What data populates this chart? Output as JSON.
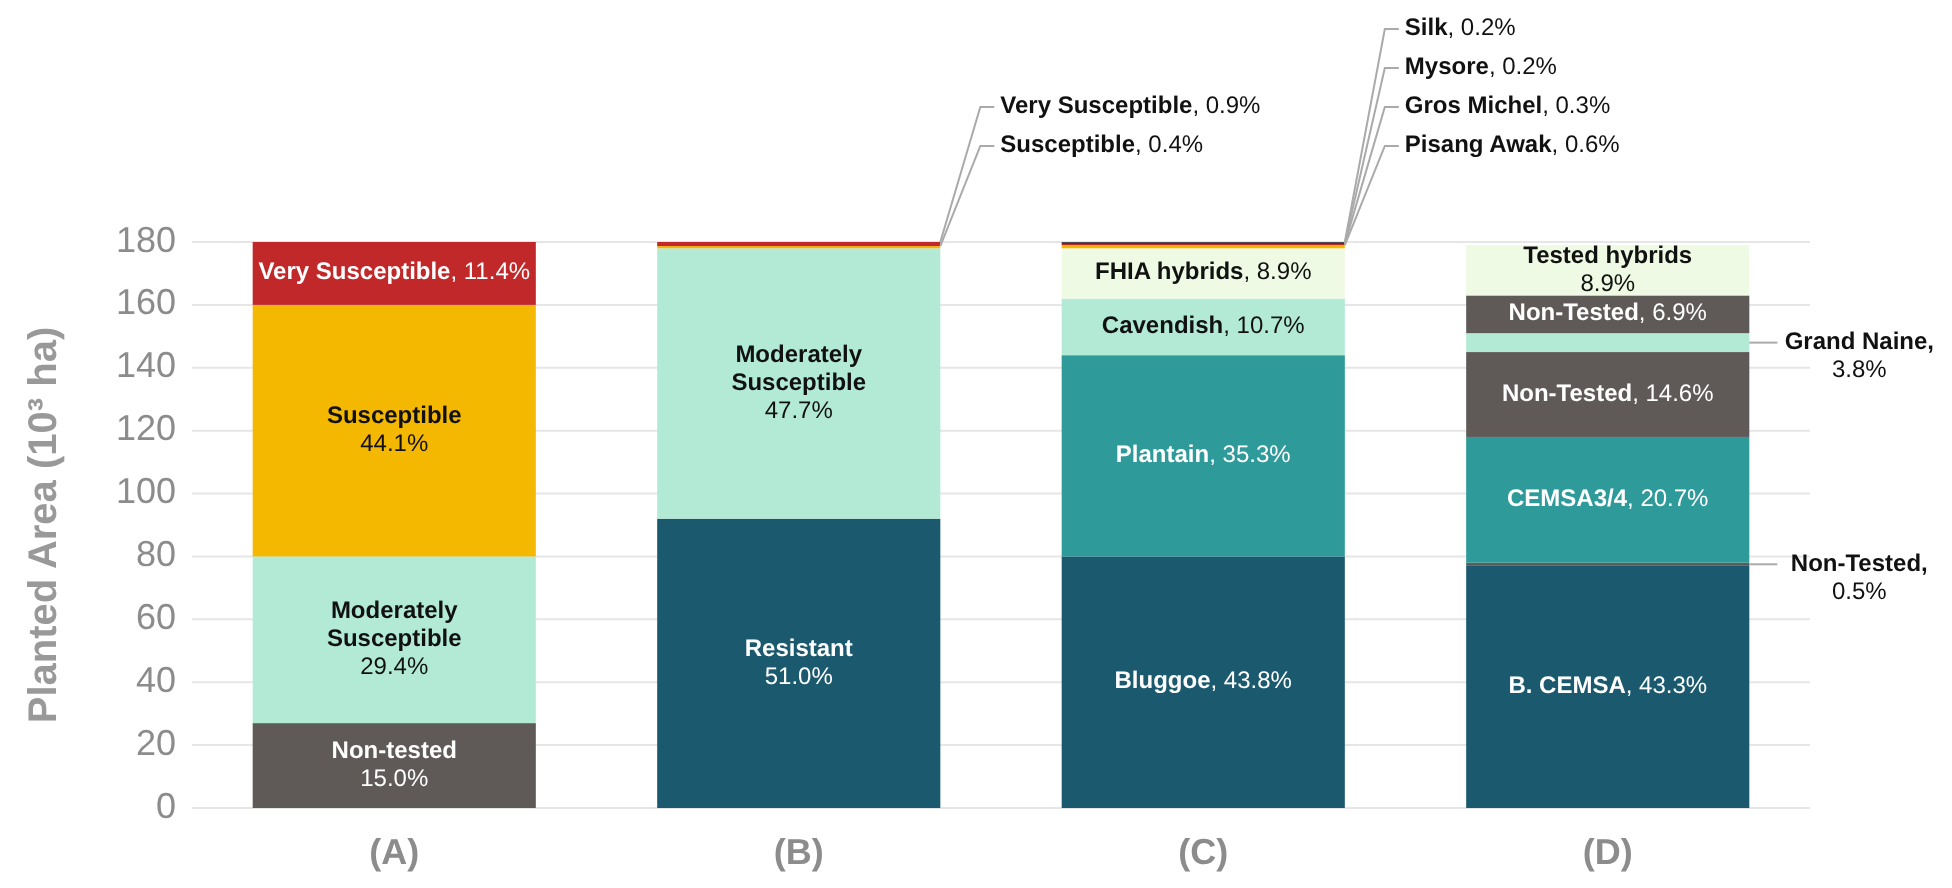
{
  "chart_data": {
    "type": "bar",
    "stacked": true,
    "ylabel": "Planted Area (10³ ha)",
    "categories": [
      "(A)",
      "(B)",
      "(C)",
      "(D)"
    ],
    "ylim": [
      0,
      180
    ],
    "yticks": [
      0,
      20,
      40,
      60,
      80,
      100,
      120,
      140,
      160,
      180
    ],
    "grid": "y",
    "series": [
      {
        "name": "Non-tested 15.0%",
        "color": "#5f5a58",
        "values": [
          27,
          null,
          null,
          null
        ]
      },
      {
        "name": "Moderately Susceptible 29.4%",
        "color": "#b3ead6",
        "values": [
          53,
          null,
          null,
          null
        ]
      },
      {
        "name": "Susceptible 44.1%",
        "color": "#f5b800",
        "values": [
          80,
          null,
          null,
          null
        ]
      },
      {
        "name": "Very Susceptible, 11.4%",
        "color": "#c0282a",
        "values": [
          20,
          null,
          null,
          null
        ]
      },
      {
        "name": "Resistant 51.0%",
        "color": "#1b5a6e",
        "values": [
          null,
          92,
          null,
          null
        ]
      },
      {
        "name": "Moderately Susceptible 47.7%",
        "color": "#b3ead6",
        "values": [
          null,
          86,
          null,
          null
        ]
      },
      {
        "name": "Susceptible, 0.4%",
        "color": "#f5b800",
        "values": [
          null,
          0.7,
          null,
          null
        ]
      },
      {
        "name": "Very Susceptible, 0.9%",
        "color": "#c0282a",
        "values": [
          null,
          1.3,
          null,
          null
        ]
      },
      {
        "name": "Bluggoe, 43.8%",
        "color": "#1b5a6e",
        "values": [
          null,
          null,
          80,
          null
        ]
      },
      {
        "name": "Plantain, 35.3%",
        "color": "#2e9a9a",
        "values": [
          null,
          null,
          64,
          null
        ]
      },
      {
        "name": "Cavendish, 10.7%",
        "color": "#b3ead6",
        "values": [
          null,
          null,
          18,
          null
        ]
      },
      {
        "name": "FHIA hybrids, 8.9%",
        "color": "#eefae4",
        "values": [
          null,
          null,
          16,
          null
        ]
      },
      {
        "name": "Pisang Awak, 0.6%",
        "color": "#f5b800",
        "values": [
          null,
          null,
          1.0,
          null
        ]
      },
      {
        "name": "Gros Michel, 0.3%",
        "color": "#c0282a",
        "values": [
          null,
          null,
          0.4,
          null
        ]
      },
      {
        "name": "Mysore, 0.2%",
        "color": "#222222",
        "values": [
          null,
          null,
          0.3,
          null
        ]
      },
      {
        "name": "Silk, 0.2%",
        "color": "#444444",
        "values": [
          null,
          null,
          0.3,
          null
        ]
      },
      {
        "name": "B. CEMSA, 43.3%",
        "color": "#1b5a6e",
        "values": [
          null,
          null,
          null,
          77
        ]
      },
      {
        "name": "Non-Tested, 0.5%",
        "color": "#5f5a58",
        "values": [
          null,
          null,
          null,
          1
        ]
      },
      {
        "name": "CEMSA3/4, 20.7%",
        "color": "#2e9a9a",
        "values": [
          null,
          null,
          null,
          40
        ]
      },
      {
        "name": "Non-Tested, 14.6%",
        "color": "#5f5a58",
        "values": [
          null,
          null,
          null,
          27
        ]
      },
      {
        "name": "Grand Naine, 3.8%",
        "color": "#b3ead6",
        "values": [
          null,
          null,
          null,
          6
        ]
      },
      {
        "name": "Non-Tested, 6.9%",
        "color": "#5f5a58",
        "values": [
          null,
          null,
          null,
          12
        ]
      },
      {
        "name": "Tested hybrids 8.9%",
        "color": "#eefae4",
        "values": [
          null,
          null,
          null,
          16
        ]
      }
    ]
  }
}
